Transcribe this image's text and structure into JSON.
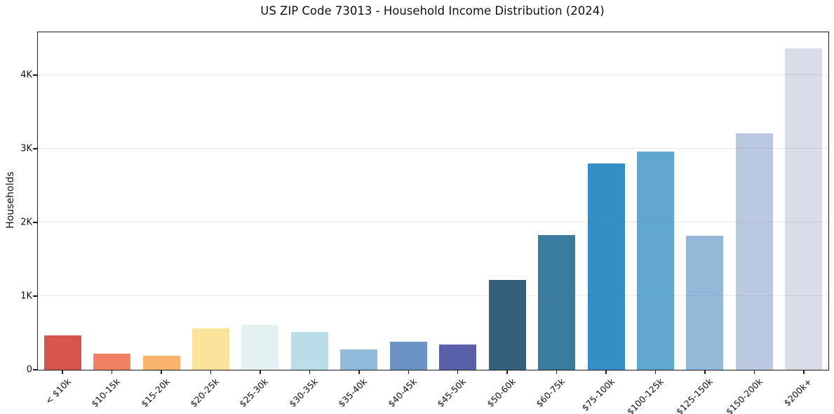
{
  "chart_data": {
    "type": "bar",
    "title": "US ZIP Code 73013 - Household Income Distribution (2024)",
    "xlabel": "",
    "ylabel": "Households",
    "ylim": [
      0,
      4580
    ],
    "grid": "horizontal",
    "grid_drawn_above_bars": true,
    "legend": "none",
    "yticks": [
      {
        "value": 0,
        "label": "0"
      },
      {
        "value": 1000,
        "label": "1K"
      },
      {
        "value": 2000,
        "label": "2K"
      },
      {
        "value": 3000,
        "label": "3K"
      },
      {
        "value": 4000,
        "label": "4K"
      }
    ],
    "categories": [
      "< $10k",
      "$10-15k",
      "$15-20k",
      "$20-25k",
      "$25-30k",
      "$30-35k",
      "$35-40k",
      "$40-45k",
      "$45-50k",
      "$50-60k",
      "$60-75k",
      "$75-100k",
      "$100-125k",
      "$125-150k",
      "$150-200k",
      "$200k+"
    ],
    "values": [
      470,
      215,
      195,
      560,
      610,
      515,
      280,
      380,
      345,
      1220,
      1830,
      2800,
      2960,
      1815,
      3210,
      4360
    ],
    "bar_colors": [
      "#d6564e",
      "#f08262",
      "#fab36c",
      "#fce39c",
      "#e4f1f3",
      "#bbdde9",
      "#90bbda",
      "#6a92c5",
      "#5a5fa9",
      "#35607a",
      "#3a7ba0",
      "#338fc4",
      "#60a8ce",
      "#94b9d8",
      "#bac9e1",
      "#d8dbe8"
    ]
  }
}
